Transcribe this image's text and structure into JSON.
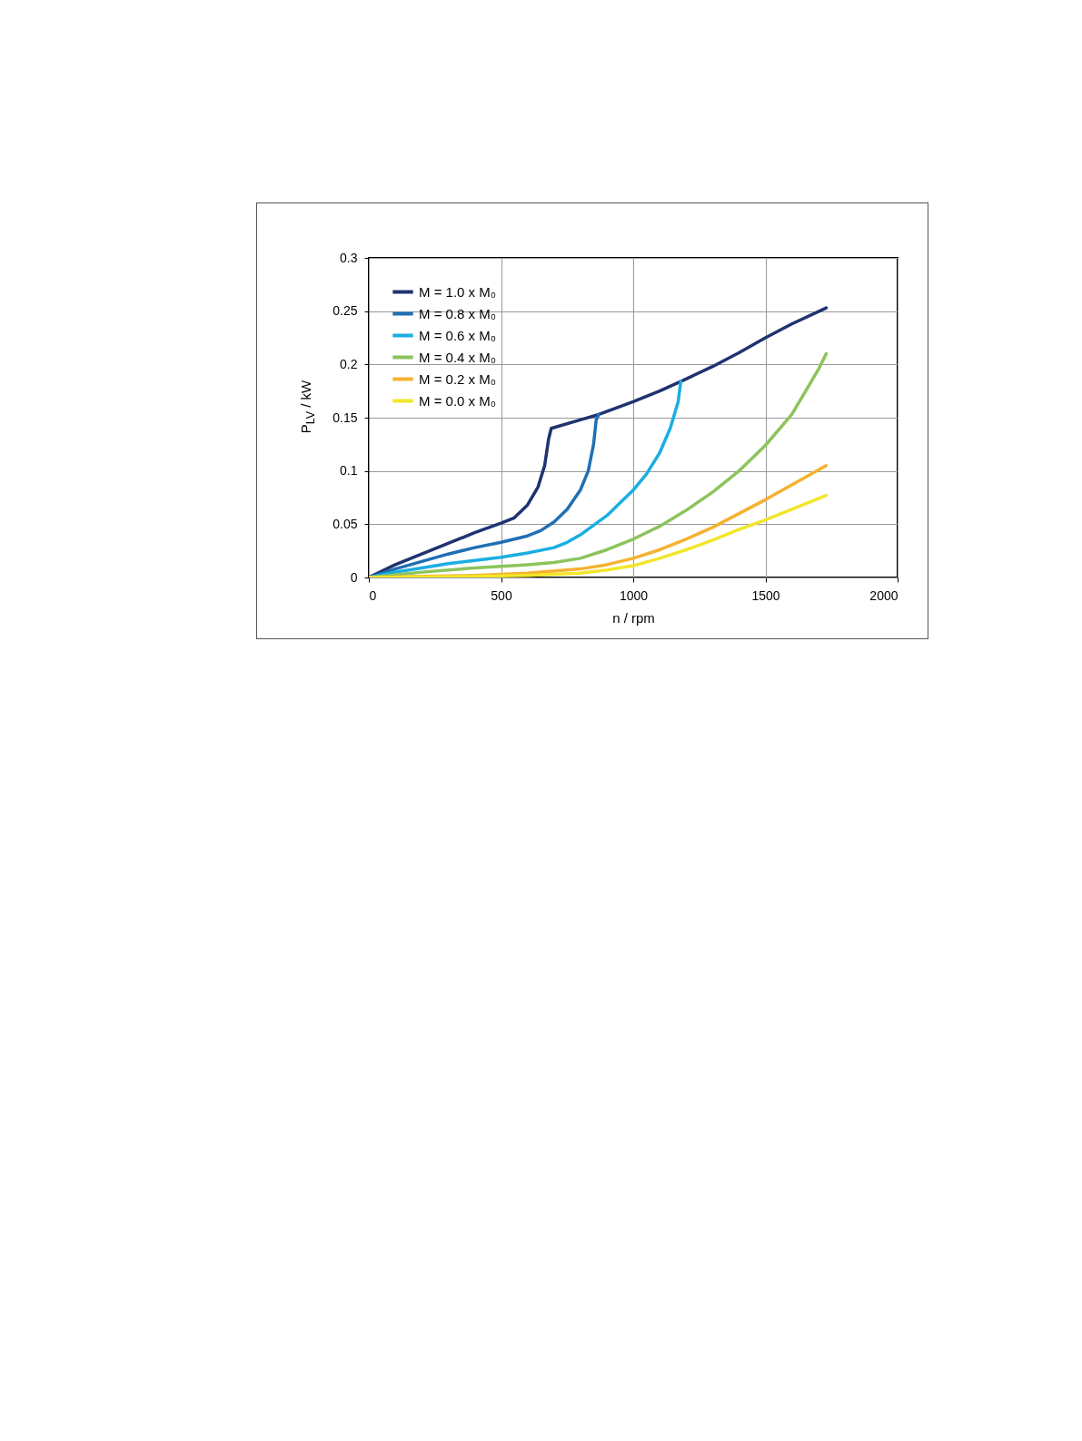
{
  "chart_data": {
    "type": "line",
    "xlabel": "n / rpm",
    "ylabel": "P$_{LV}$ / kW",
    "xlim": [
      0,
      2000
    ],
    "xticks": [
      0,
      500,
      1000,
      1500,
      2000
    ],
    "ylim": [
      0,
      0.3
    ],
    "yticks": [
      0,
      0.05,
      0.1,
      0.15,
      0.2,
      0.25,
      0.3
    ],
    "grid": true,
    "legend": "top left",
    "line_style": "solid",
    "marker": "none",
    "series": [
      {
        "name": "M = 1.0 x M₀",
        "color": "#1f3370",
        "x": [
          0,
          100,
          200,
          300,
          400,
          500,
          550,
          600,
          640,
          665,
          680,
          690,
          800,
          870,
          1000,
          1100,
          1180,
          1300,
          1400,
          1500,
          1600,
          1730
        ],
        "values": [
          0,
          0.012,
          0.022,
          0.032,
          0.042,
          0.051,
          0.056,
          0.068,
          0.085,
          0.105,
          0.13,
          0.14,
          0.148,
          0.153,
          0.165,
          0.175,
          0.184,
          0.198,
          0.211,
          0.225,
          0.238,
          0.253
        ]
      },
      {
        "name": "M = 0.8 x M₀",
        "color": "#1f6fb4",
        "x": [
          0,
          100,
          200,
          300,
          400,
          500,
          600,
          650,
          700,
          750,
          800,
          830,
          850,
          860,
          870
        ],
        "values": [
          0,
          0.008,
          0.015,
          0.022,
          0.028,
          0.033,
          0.039,
          0.044,
          0.052,
          0.064,
          0.082,
          0.1,
          0.125,
          0.148,
          0.153
        ]
      },
      {
        "name": "M = 0.6 x M₀",
        "color": "#1aaee2",
        "x": [
          0,
          100,
          200,
          300,
          400,
          500,
          600,
          700,
          750,
          800,
          900,
          1000,
          1050,
          1100,
          1140,
          1170,
          1180
        ],
        "values": [
          0,
          0.005,
          0.009,
          0.013,
          0.016,
          0.019,
          0.023,
          0.028,
          0.033,
          0.04,
          0.058,
          0.082,
          0.097,
          0.117,
          0.14,
          0.165,
          0.184
        ]
      },
      {
        "name": "M = 0.4 x M₀",
        "color": "#8cc45c",
        "x": [
          0,
          200,
          400,
          600,
          700,
          800,
          900,
          1000,
          1100,
          1200,
          1300,
          1400,
          1500,
          1600,
          1700,
          1730
        ],
        "values": [
          0,
          0.005,
          0.009,
          0.012,
          0.014,
          0.018,
          0.026,
          0.036,
          0.048,
          0.063,
          0.08,
          0.1,
          0.124,
          0.153,
          0.195,
          0.21
        ]
      },
      {
        "name": "M = 0.2 x M₀",
        "color": "#f5b230",
        "x": [
          0,
          200,
          400,
          600,
          800,
          900,
          1000,
          1100,
          1200,
          1300,
          1400,
          1500,
          1600,
          1730
        ],
        "values": [
          0,
          0.001,
          0.002,
          0.004,
          0.008,
          0.012,
          0.018,
          0.026,
          0.036,
          0.047,
          0.06,
          0.073,
          0.087,
          0.105
        ]
      },
      {
        "name": "M = 0.0 x M₀",
        "color": "#f2e62a",
        "x": [
          0,
          400,
          600,
          800,
          900,
          1000,
          1100,
          1200,
          1300,
          1400,
          1500,
          1600,
          1730
        ],
        "values": [
          0,
          0.001,
          0.002,
          0.004,
          0.007,
          0.011,
          0.018,
          0.026,
          0.035,
          0.045,
          0.054,
          0.064,
          0.077
        ]
      }
    ]
  }
}
